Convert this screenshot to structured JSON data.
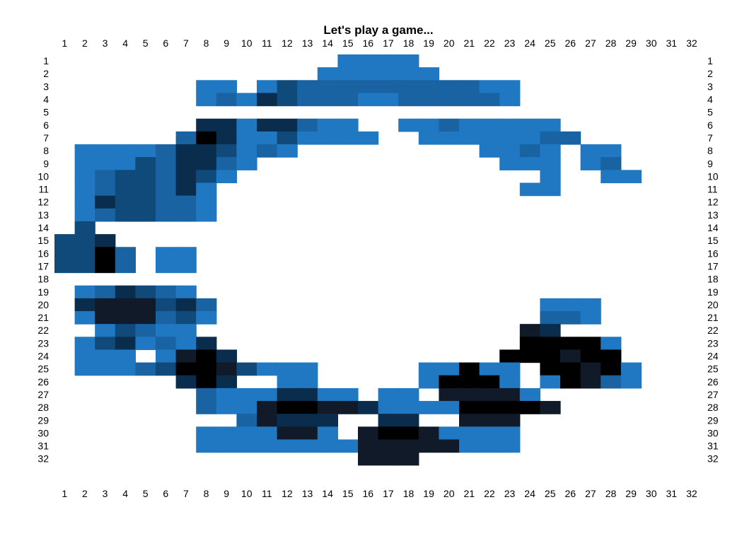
{
  "title": "Let's play a game...",
  "palette": {
    "B": "#1f78c1",
    "M": "#1a63a3",
    "D": "#0f4a7a",
    "V": "#0a2d4d",
    "K": "#101a28",
    "X": "#000000"
  },
  "chart_data": {
    "type": "heatmap",
    "title": "Let's play a game...",
    "columns": [
      "1",
      "2",
      "3",
      "4",
      "5",
      "6",
      "7",
      "8",
      "9",
      "10",
      "11",
      "12",
      "13",
      "14",
      "15",
      "16",
      "17",
      "18",
      "19",
      "20",
      "21",
      "22",
      "23",
      "24",
      "25",
      "26",
      "27",
      "28",
      "29",
      "30",
      "31",
      "32"
    ],
    "rows": [
      "1",
      "2",
      "3",
      "4",
      "5",
      "6",
      "7",
      "8",
      "9",
      "10",
      "11",
      "12",
      "13",
      "14",
      "15",
      "16",
      "17",
      "18",
      "19",
      "20",
      "21",
      "22",
      "23",
      "24",
      "25",
      "26",
      "27",
      "28",
      "29",
      "30",
      "31",
      "32"
    ],
    "grid": [
      "..............BBBB..............",
      ".............BBBBBB.............",
      ".......BB.BDMMMMMMMMMBB.........",
      ".......BMBVDMMMBBMMMMMB.........",
      "................................",
      ".......VVBVVMBB..BBMBBBBB.......",
      "......MXVBBDBBBB..BBBBBBMM......",
      ".BBBBMVVDBMB.........BBMB.BB....",
      ".BBBDMVVMB............BBB.BM....",
      ".BMDDMVDB...............B..BB...",
      ".BMDDMVB...............BB.......",
      ".BVDDMMB........................",
      ".BMDDMMB........................",
      ".D..............................",
      "DDV.............................",
      "DDXM.BB.........................",
      "DDXM.BB.........................",
      "................................",
      ".BMVDMB.........................",
      ".VKKKDVM................BBB.....",
      ".BKKKMDB................MMB.....",
      "..BDMBB................KV.......",
      ".BDVBMBV...............XXXXB....",
      ".BBB.BKXV.............XXXKXX....",
      ".BBBMDXXKDBBB.....BBXBB.XXKXB...",
      "......VXV..BB.....BXXXB.BXKMB...",
      ".......MBBBVVBB.BB.KKKKB........",
      ".......MBBKXXKKVBBBBXXXXK.......",
      ".........MKVVV..VV..KKK.........",
      ".......BBBBKKB.KXXKBBBB.........",
      ".......BBBBBBBBKKKKKBBB.........",
      "...............KKK.............."
    ],
    "xlabel": "",
    "ylabel": "",
    "grid_lines": false,
    "legend": "none"
  }
}
